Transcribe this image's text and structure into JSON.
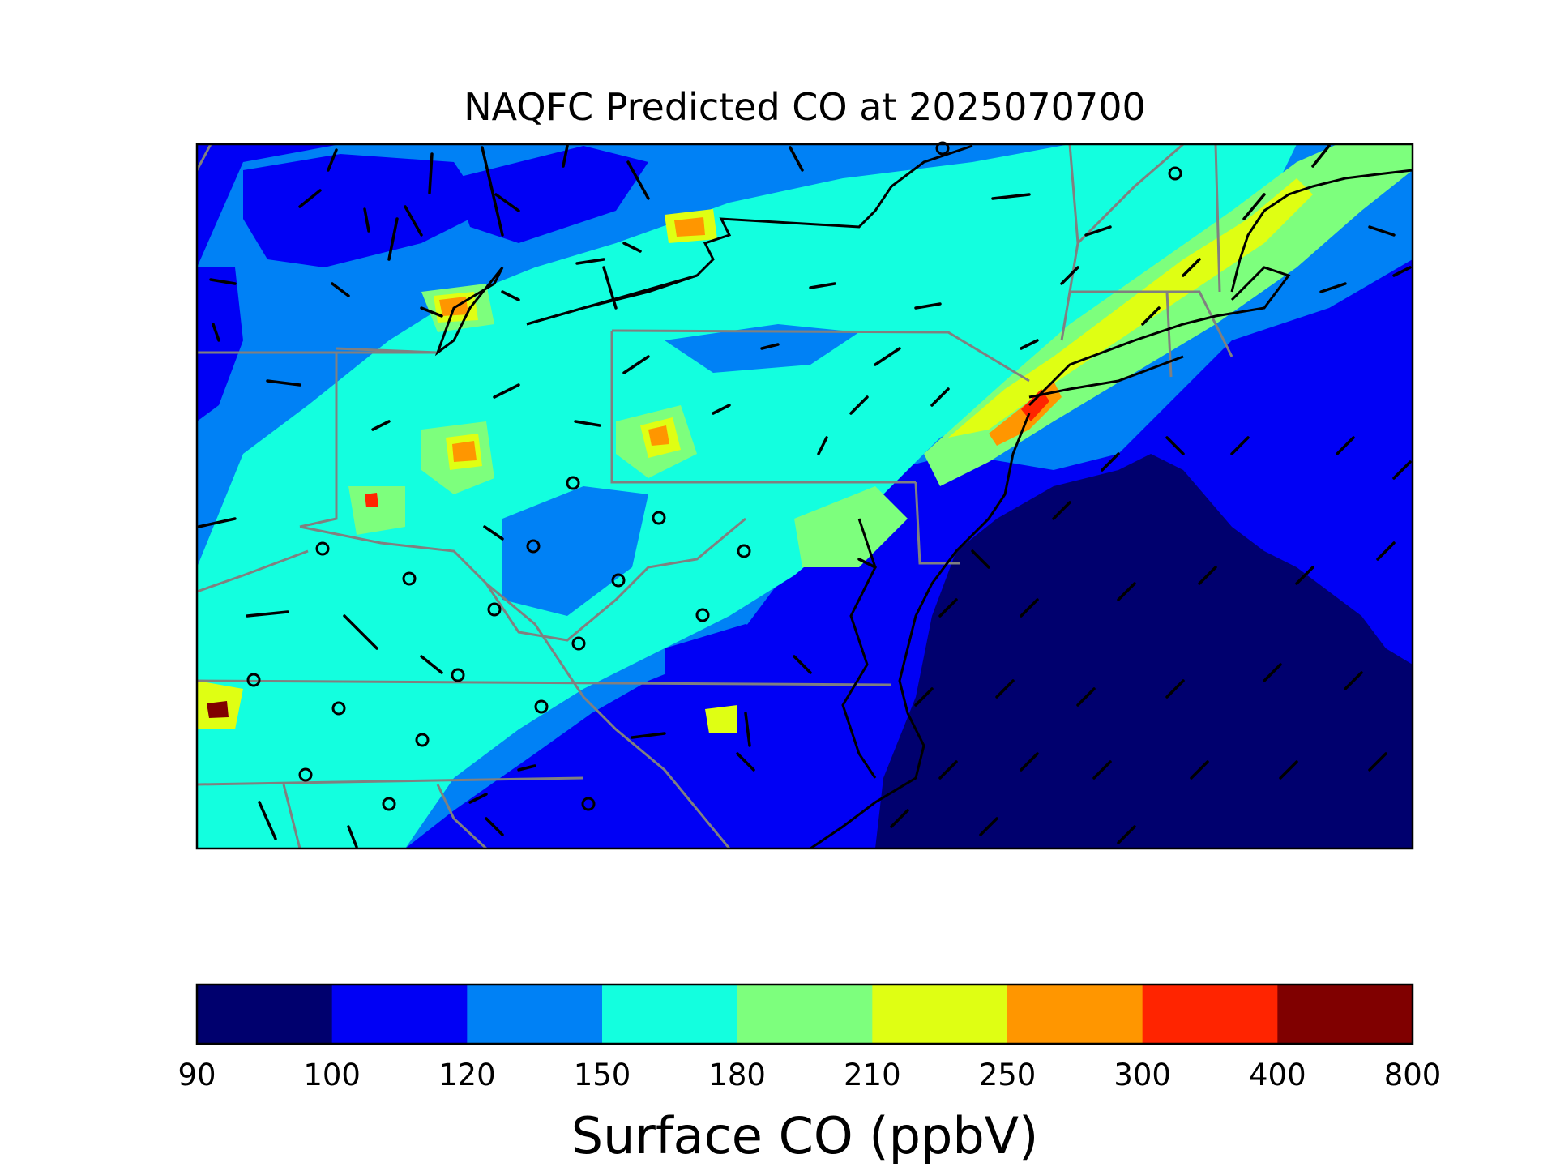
{
  "title": "NAQFC Predicted CO at 2025070700",
  "colorbar": {
    "label": "Surface CO (ppbV)",
    "ticks": [
      "90",
      "100",
      "120",
      "150",
      "180",
      "210",
      "250",
      "300",
      "400",
      "800"
    ],
    "colors": [
      "#00006e",
      "#0000f5",
      "#0081f5",
      "#13ffdf",
      "#7dff7d",
      "#dfff13",
      "#ff9600",
      "#ff2400",
      "#800000"
    ]
  },
  "map": {
    "projection": "lambert conformal",
    "region": "Mid-Atlantic and Northeast United States",
    "overlays": [
      "coastlines",
      "state-borders",
      "wind-barbs",
      "calm-wind-circles"
    ],
    "border_color": "#808080",
    "coast_color": "#000000"
  }
}
